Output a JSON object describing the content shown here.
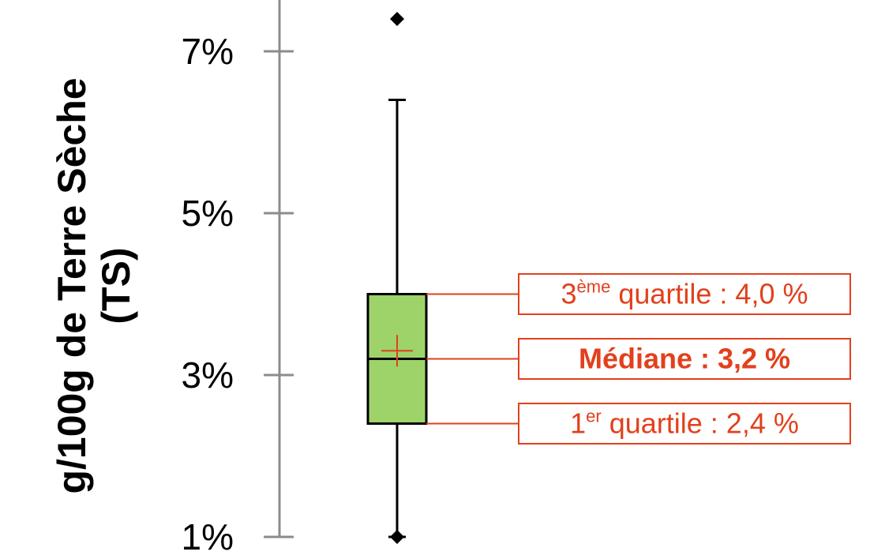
{
  "chart_data": {
    "type": "box",
    "ylabel_lines": [
      "g/100g de Terre Sèche",
      "(TS)"
    ],
    "yticks": [
      {
        "value": 1,
        "label": "1%"
      },
      {
        "value": 3,
        "label": "3%"
      },
      {
        "value": 5,
        "label": "5%"
      },
      {
        "value": 7,
        "label": "7%"
      }
    ],
    "ylim": [
      1,
      7.5
    ],
    "box": {
      "whisker_low": 1.0,
      "q1": 2.4,
      "median": 3.2,
      "q3": 4.0,
      "whisker_high": 6.4,
      "mean": 3.3,
      "outliers": [
        7.4
      ]
    },
    "annotations": [
      {
        "key": "q3",
        "value": 4.0,
        "main": "3",
        "sup": "ème",
        "rest": " quartile : 4,0 %",
        "bold": false
      },
      {
        "key": "median",
        "value": 3.2,
        "main": "Médiane : 3,2 %",
        "sup": "",
        "rest": "",
        "bold": true
      },
      {
        "key": "q1",
        "value": 2.4,
        "main": "1",
        "sup": "er",
        "rest": " quartile : 2,4 %",
        "bold": false
      }
    ],
    "colors": {
      "box_fill": "#9ed36a",
      "box_stroke": "#000000",
      "axis": "#8c8c8c",
      "annotation": "#e2401c",
      "mean_marker": "#e2401c"
    }
  }
}
